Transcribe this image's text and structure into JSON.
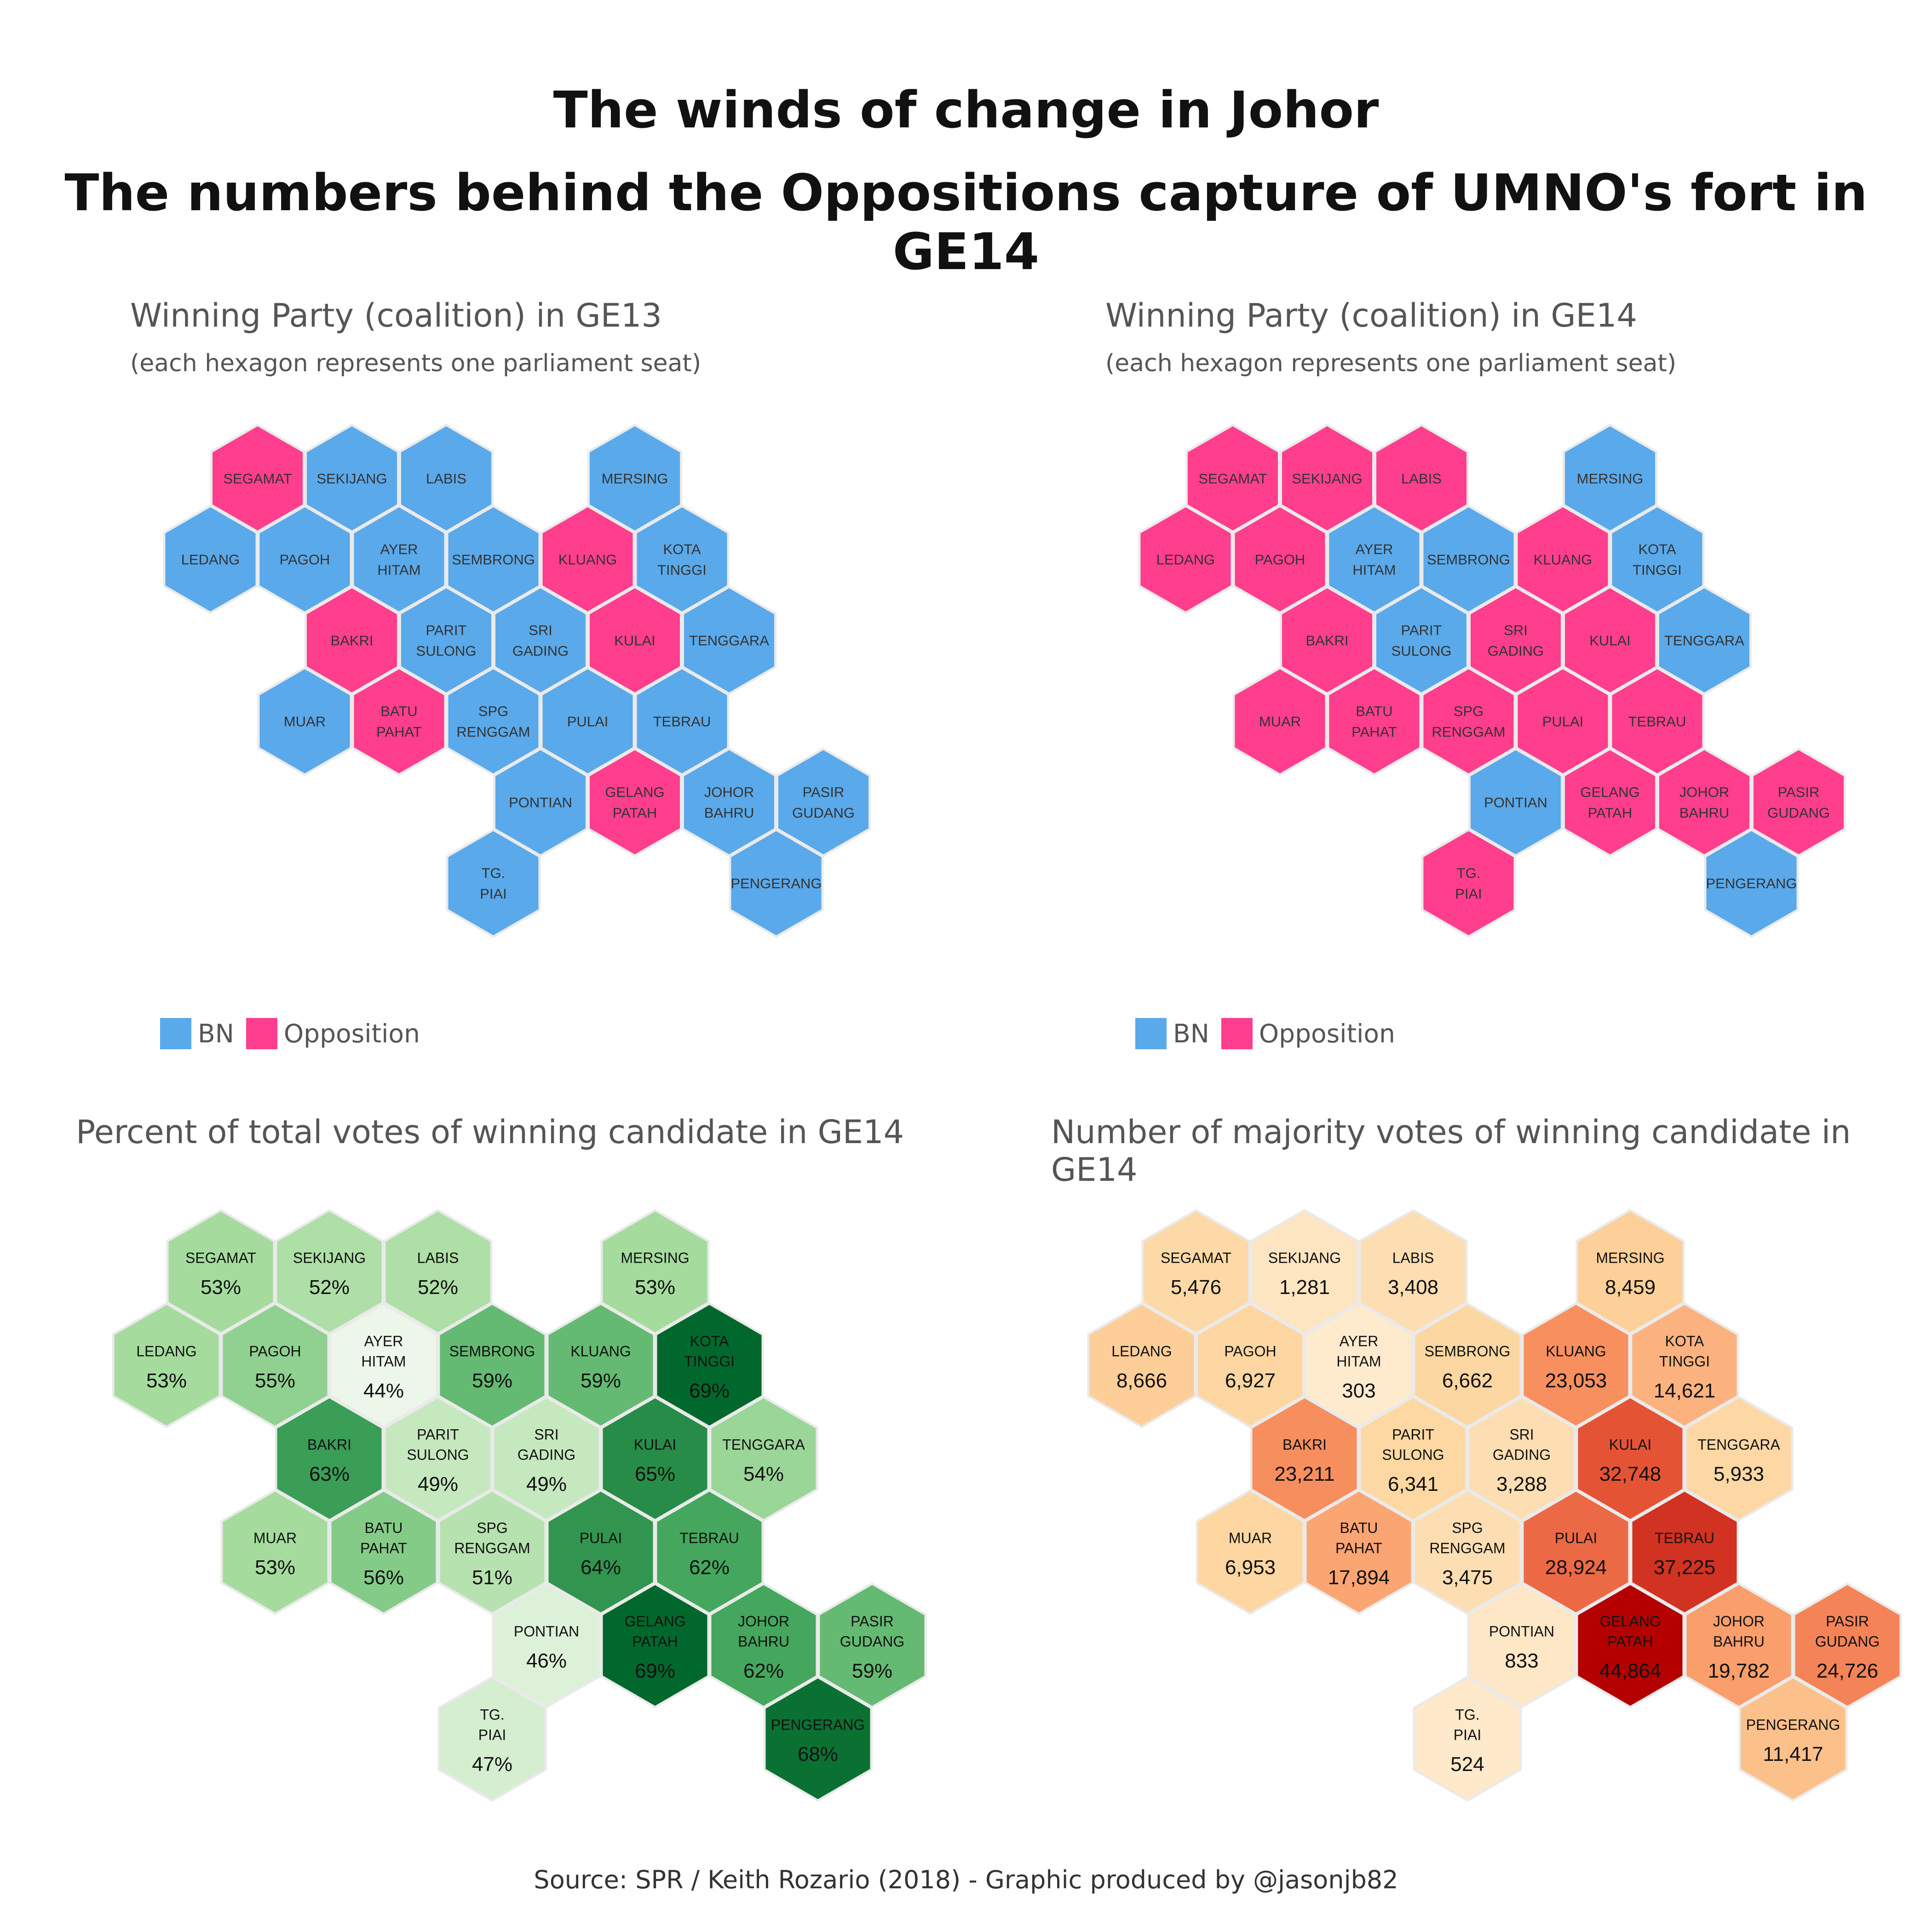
{
  "title_line1": "The winds of change in Johor",
  "title_line2": "The numbers behind the Oppositions capture of UMNO's fort in GE14",
  "panels": {
    "ge13": {
      "title": "Winning Party (coalition) in GE13",
      "subtitle": "(each hexagon represents one parliament seat)"
    },
    "ge14": {
      "title": "Winning Party (coalition) in GE14",
      "subtitle": "(each hexagon represents one parliament seat)"
    },
    "pct": {
      "title": "Percent of total votes of winning candidate in GE14"
    },
    "maj": {
      "title": "Number of majority votes of winning candidate in GE14"
    }
  },
  "legend": {
    "bn_label": "BN",
    "opp_label": "Opposition",
    "bn_color": "#5AA9EA",
    "opp_color": "#FF3E8D"
  },
  "source": "Source: SPR / Keith Rozario (2018) - Graphic produced by @jasonjb82",
  "chart_data": {
    "type": "hexmap",
    "seats": [
      {
        "name": "SEGAMAT",
        "col": 0,
        "row": 0,
        "ge13": "Opposition",
        "ge14": "Opposition",
        "pct": "53%",
        "majority": "5,476"
      },
      {
        "name": "SEKIJANG",
        "col": 1,
        "row": 0,
        "ge13": "BN",
        "ge14": "Opposition",
        "pct": "52%",
        "majority": "1,281"
      },
      {
        "name": "LABIS",
        "col": 2,
        "row": 0,
        "ge13": "BN",
        "ge14": "Opposition",
        "pct": "52%",
        "majority": "3,408"
      },
      {
        "name": "MERSING",
        "col": 4,
        "row": 0,
        "ge13": "BN",
        "ge14": "BN",
        "pct": "53%",
        "majority": "8,459"
      },
      {
        "name": "LEDANG",
        "col": 0,
        "row": 1,
        "ge13": "BN",
        "ge14": "Opposition",
        "pct": "53%",
        "majority": "8,666"
      },
      {
        "name": "PAGOH",
        "col": 1,
        "row": 1,
        "ge13": "BN",
        "ge14": "Opposition",
        "pct": "55%",
        "majority": "6,927"
      },
      {
        "name": "AYER HITAM",
        "col": 2,
        "row": 1,
        "ge13": "BN",
        "ge14": "BN",
        "pct": "44%",
        "majority": "303"
      },
      {
        "name": "SEMBRONG",
        "col": 3,
        "row": 1,
        "ge13": "BN",
        "ge14": "BN",
        "pct": "59%",
        "majority": "6,662"
      },
      {
        "name": "KLUANG",
        "col": 4,
        "row": 1,
        "ge13": "Opposition",
        "ge14": "Opposition",
        "pct": "59%",
        "majority": "23,053"
      },
      {
        "name": "KOTA TINGGI",
        "col": 5,
        "row": 1,
        "ge13": "BN",
        "ge14": "BN",
        "pct": "69%",
        "majority": "14,621"
      },
      {
        "name": "BAKRI",
        "col": 1,
        "row": 2,
        "ge13": "Opposition",
        "ge14": "Opposition",
        "pct": "63%",
        "majority": "23,211"
      },
      {
        "name": "PARIT SULONG",
        "col": 2,
        "row": 2,
        "ge13": "BN",
        "ge14": "BN",
        "pct": "49%",
        "majority": "6,341"
      },
      {
        "name": "SRI GADING",
        "col": 3,
        "row": 2,
        "ge13": "BN",
        "ge14": "Opposition",
        "pct": "49%",
        "majority": "3,288"
      },
      {
        "name": "KULAI",
        "col": 4,
        "row": 2,
        "ge13": "Opposition",
        "ge14": "Opposition",
        "pct": "65%",
        "majority": "32,748"
      },
      {
        "name": "TENGGARA",
        "col": 5,
        "row": 2,
        "ge13": "BN",
        "ge14": "BN",
        "pct": "54%",
        "majority": "5,933"
      },
      {
        "name": "MUAR",
        "col": 1,
        "row": 3,
        "ge13": "BN",
        "ge14": "Opposition",
        "pct": "53%",
        "majority": "6,953"
      },
      {
        "name": "BATU PAHAT",
        "col": 2,
        "row": 3,
        "ge13": "Opposition",
        "ge14": "Opposition",
        "pct": "56%",
        "majority": "17,894"
      },
      {
        "name": "SPG RENGGAM",
        "col": 3,
        "row": 3,
        "ge13": "BN",
        "ge14": "Opposition",
        "pct": "51%",
        "majority": "3,475"
      },
      {
        "name": "PULAI",
        "col": 4,
        "row": 3,
        "ge13": "BN",
        "ge14": "Opposition",
        "pct": "64%",
        "majority": "28,924"
      },
      {
        "name": "TEBRAU",
        "col": 5,
        "row": 3,
        "ge13": "BN",
        "ge14": "Opposition",
        "pct": "62%",
        "majority": "37,225"
      },
      {
        "name": "PONTIAN",
        "col": 3,
        "row": 4,
        "ge13": "BN",
        "ge14": "BN",
        "pct": "46%",
        "majority": "833"
      },
      {
        "name": "GELANG PATAH",
        "col": 4,
        "row": 4,
        "ge13": "Opposition",
        "ge14": "Opposition",
        "pct": "69%",
        "majority": "44,864"
      },
      {
        "name": "JOHOR BAHRU",
        "col": 5,
        "row": 4,
        "ge13": "BN",
        "ge14": "Opposition",
        "pct": "62%",
        "majority": "19,782"
      },
      {
        "name": "PASIR GUDANG",
        "col": 6,
        "row": 4,
        "ge13": "BN",
        "ge14": "Opposition",
        "pct": "59%",
        "majority": "24,726"
      },
      {
        "name": "TG. PIAI",
        "col": 3,
        "row": 5,
        "ge13": "BN",
        "ge14": "Opposition",
        "pct": "47%",
        "majority": "524"
      },
      {
        "name": "PENGERANG",
        "col": 6,
        "row": 5,
        "ge13": "BN",
        "ge14": "BN",
        "pct": "68%",
        "majority": "11,417"
      }
    ]
  }
}
